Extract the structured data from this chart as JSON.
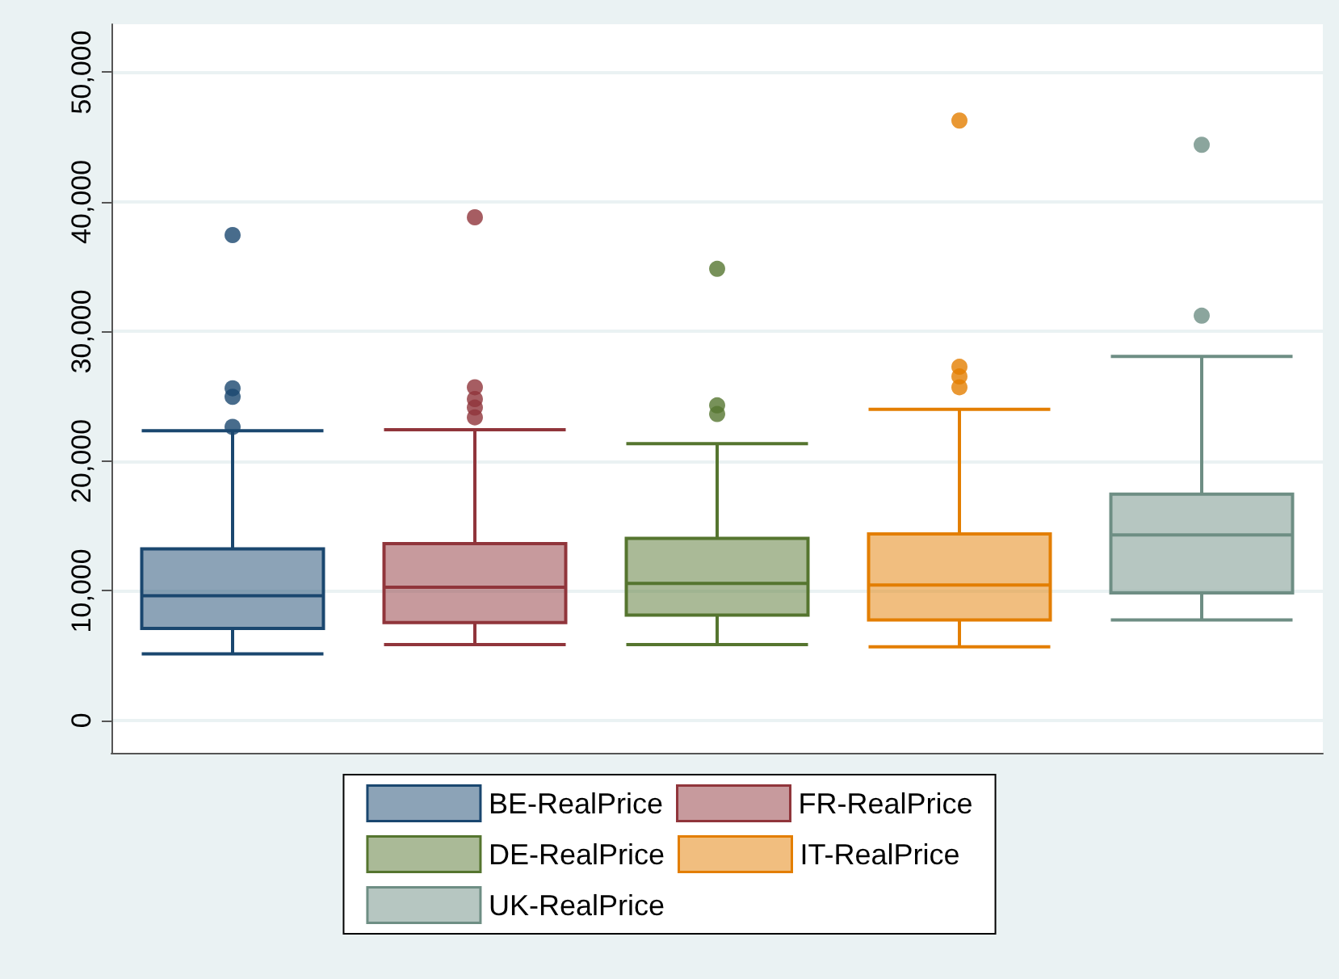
{
  "chart_data": {
    "type": "box",
    "categories": [
      null,
      null,
      null,
      null,
      null
    ],
    "ylim": [
      -2500,
      53700
    ],
    "yticks": [
      {
        "value": 0,
        "label": "0"
      },
      {
        "value": 10000,
        "label": "10,000"
      },
      {
        "value": 20000,
        "label": "20,000"
      },
      {
        "value": 30000,
        "label": "30,000"
      },
      {
        "value": 40000,
        "label": "40,000"
      },
      {
        "value": 50000,
        "label": "50,000"
      }
    ],
    "grid": "y",
    "legend": "bottom",
    "series": [
      {
        "name": "BE-RealPrice",
        "color": "#1a476f",
        "boxes": [
          {
            "low": 5140,
            "q1": 7090,
            "median": 9620,
            "q3": 13230,
            "high": 22350,
            "outliers": [
              22640,
              24960,
              25620,
              37440
            ]
          },
          null,
          null,
          null,
          null
        ]
      },
      {
        "name": "FR-RealPrice",
        "color": "#90353b",
        "boxes": [
          null,
          {
            "low": 5850,
            "q1": 7550,
            "median": 10280,
            "q3": 13640,
            "high": 22430,
            "outliers": [
              23380,
              24130,
              24790,
              25700,
              38810
            ]
          },
          null,
          null,
          null
        ]
      },
      {
        "name": "DE-RealPrice",
        "color": "#55752f",
        "boxes": [
          null,
          null,
          {
            "low": 5850,
            "q1": 8130,
            "median": 10570,
            "q3": 14050,
            "high": 21350,
            "outliers": [
              23630,
              24300,
              34830
            ]
          },
          null,
          null
        ]
      },
      {
        "name": "IT-RealPrice",
        "color": "#e37e00",
        "boxes": [
          null,
          null,
          null,
          {
            "low": 5680,
            "q1": 7750,
            "median": 10450,
            "q3": 14390,
            "high": 24000,
            "outliers": [
              25700,
              26530,
              27280,
              46270
            ]
          },
          null
        ]
      },
      {
        "name": "UK-RealPrice",
        "color": "#6e8e84",
        "boxes": [
          null,
          null,
          null,
          null,
          {
            "low": 7750,
            "q1": 9830,
            "median": 14300,
            "q3": 17450,
            "high": 28070,
            "outliers": [
              31220,
              44400
            ]
          }
        ]
      }
    ]
  }
}
